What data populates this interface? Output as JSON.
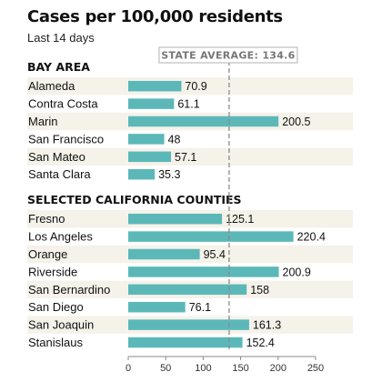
{
  "title": "Cases per 100,000 residents",
  "subtitle": "Last 14 days",
  "colors": {
    "bar": "#5cb8b8",
    "band": "#f5f2ea",
    "avg_line": "#8a8a8a",
    "avg_box_border": "#bdbdbd"
  },
  "chart_data": {
    "type": "bar",
    "orientation": "horizontal",
    "reference_line": {
      "label": "STATE AVERAGE: 134.6",
      "value": 134.6
    },
    "xlim": [
      0,
      250
    ],
    "xticks": [
      0,
      50,
      100,
      150,
      200,
      250
    ],
    "grid": false,
    "groups": [
      {
        "name": "BAY AREA",
        "categories": [
          "Alameda",
          "Contra Costa",
          "Marin",
          "San Francisco",
          "San Mateo",
          "Santa Clara"
        ],
        "values": [
          70.9,
          61.1,
          200.5,
          48,
          57.1,
          35.3
        ],
        "labels": [
          "70.9",
          "61.1",
          "200.5",
          "48",
          "57.1",
          "35.3"
        ]
      },
      {
        "name": "SELECTED CALIFORNIA COUNTIES",
        "categories": [
          "Fresno",
          "Los Angeles",
          "Orange",
          "Riverside",
          "San Bernardino",
          "San Diego",
          "San Joaquin",
          "Stanislaus"
        ],
        "values": [
          125.1,
          220.4,
          95.4,
          200.9,
          158,
          76.1,
          161.3,
          152.4
        ],
        "labels": [
          "125.1",
          "220.4",
          "95.4",
          "200.9",
          "158",
          "76.1",
          "161.3",
          "152.4"
        ]
      }
    ]
  }
}
